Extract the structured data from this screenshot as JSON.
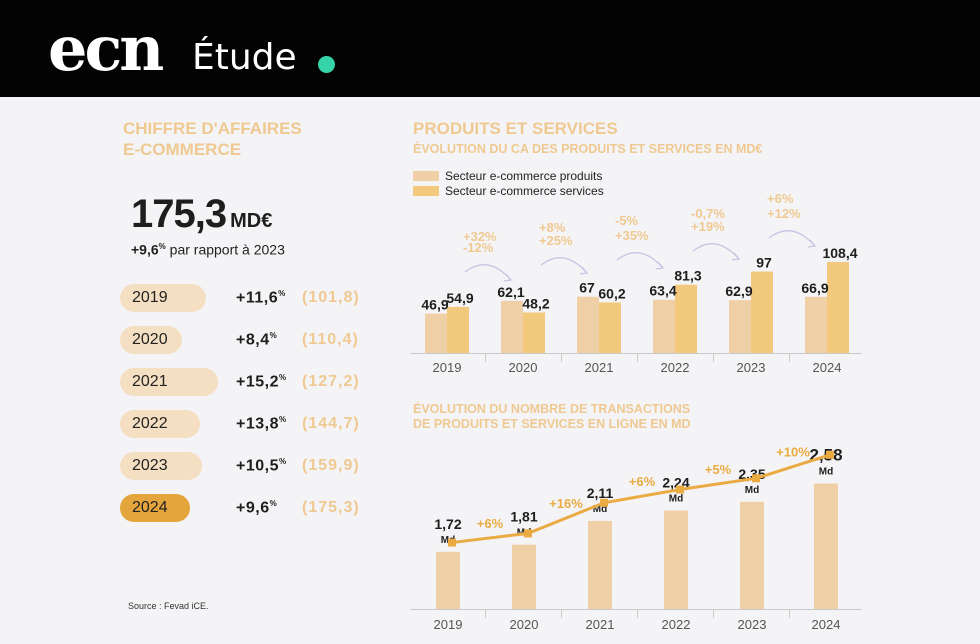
{
  "header": {
    "logo": "ecn",
    "label": "Étude"
  },
  "left": {
    "title_line1": "CHIFFRE D'AFFAIRES",
    "title_line2": "E-COMMERCE",
    "total_value": "175,3",
    "total_unit": "MD€",
    "growth_pct": "+9,6",
    "growth_pct_sign": "%",
    "growth_text": "par rapport à 2023",
    "years": [
      {
        "year": "2019",
        "pct": "+11,6",
        "total": "(101,8)"
      },
      {
        "year": "2020",
        "pct": "+8,4",
        "total": "(110,4)"
      },
      {
        "year": "2021",
        "pct": "+15,2",
        "total": "(127,2)"
      },
      {
        "year": "2022",
        "pct": "+13,8",
        "total": "(144,7)"
      },
      {
        "year": "2023",
        "pct": "+10,5",
        "total": "(159,9)"
      },
      {
        "year": "2024",
        "pct": "+9,6",
        "total": "(175,3)"
      }
    ],
    "pct_sign": "%",
    "source": "Source : Fevad iCE."
  },
  "colors": {
    "products": "#efcfa6",
    "services": "#f3c97e",
    "line": "#e9ab42",
    "accent": "#efc991"
  },
  "chart_data": [
    {
      "type": "bar",
      "title": "PRODUITS ET SERVICES",
      "subtitle": "ÉVOLUTION DU CA DES PRODUITS ET SERVICES EN MD€",
      "legend_placement": "top-left",
      "categories": [
        "2019",
        "2020",
        "2021",
        "2022",
        "2023",
        "2024"
      ],
      "series": [
        {
          "name": "Secteur e-commerce produits",
          "values": [
            46.9,
            62.1,
            67,
            63.4,
            62.9,
            66.9
          ],
          "labels": [
            "46,9",
            "62,1",
            "67",
            "63,4",
            "62,9",
            "66,9"
          ]
        },
        {
          "name": "Secteur e-commerce services",
          "values": [
            54.9,
            48.2,
            60.2,
            81.3,
            97,
            108.4
          ],
          "labels": [
            "54,9",
            "48,2",
            "60,2",
            "81,3",
            "97",
            "108,4"
          ]
        }
      ],
      "annotations": [
        {
          "from": "2019",
          "to": "2020",
          "products": "+32%",
          "services": "-12%"
        },
        {
          "from": "2020",
          "to": "2021",
          "products": "+8%",
          "services": "+25%"
        },
        {
          "from": "2021",
          "to": "2022",
          "products": "-5%",
          "services": "+35%"
        },
        {
          "from": "2022",
          "to": "2023",
          "products": "-0,7%",
          "services": "+19%"
        },
        {
          "from": "2023",
          "to": "2024",
          "products": "+6%",
          "services": "+12%"
        }
      ],
      "ylim": [
        0,
        120
      ],
      "grid": false
    },
    {
      "type": "bar",
      "title_line1": "ÉVOLUTION DU NOMBRE DE TRANSACTIONS",
      "title_line2": "DE PRODUITS ET SERVICES EN LIGNE EN MD",
      "categories": [
        "2019",
        "2020",
        "2021",
        "2022",
        "2023",
        "2024"
      ],
      "values": [
        1.72,
        1.81,
        2.11,
        2.24,
        2.35,
        2.58
      ],
      "labels": [
        "1,72",
        "1,81",
        "2,11",
        "2,24",
        "2,35",
        "2,58"
      ],
      "unit": "Md",
      "growth": [
        "+6%",
        "+16%",
        "+6%",
        "+5%",
        "+10%"
      ],
      "ylim": [
        0,
        2.58
      ],
      "grid": false
    }
  ]
}
